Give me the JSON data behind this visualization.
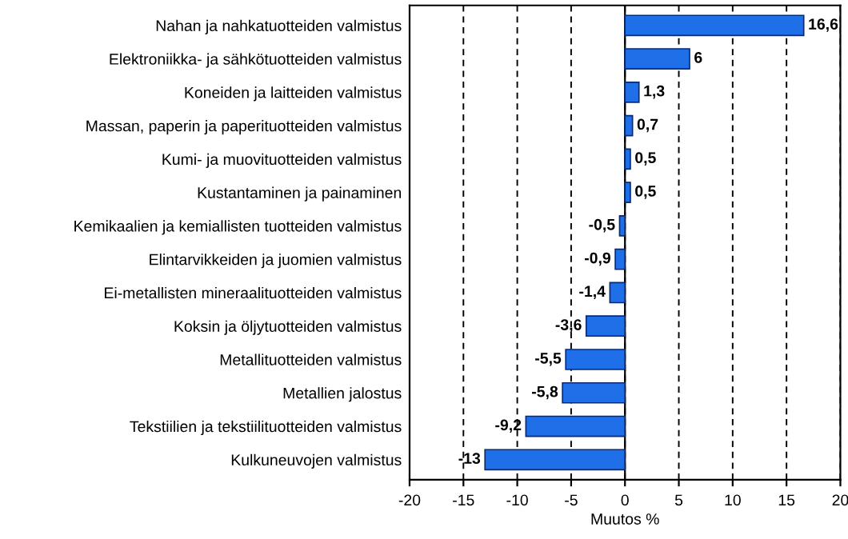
{
  "chart_data": {
    "type": "bar",
    "orientation": "horizontal",
    "xlabel": "Muutos %",
    "categories": [
      "Nahan ja nahkatuotteiden valmistus",
      "Elektroniikka- ja sähkötuotteiden valmistus",
      "Koneiden ja laitteiden valmistus",
      "Massan, paperin ja paperituotteiden valmistus",
      "Kumi- ja muovituotteiden valmistus",
      "Kustantaminen ja painaminen",
      "Kemikaalien ja kemiallisten tuotteiden valmistus",
      "Elintarvikkeiden ja juomien valmistus",
      "Ei-metallisten mineraalituotteiden valmistus",
      "Koksin ja öljytuotteiden valmistus",
      "Metallituotteiden valmistus",
      "Metallien jalostus",
      "Tekstiilien ja tekstiilituotteiden valmistus",
      "Kulkuneuvojen valmistus"
    ],
    "values": [
      16.6,
      6,
      1.3,
      0.7,
      0.5,
      0.5,
      -0.5,
      -0.9,
      -1.4,
      -3.6,
      -5.5,
      -5.8,
      -9.2,
      -13
    ],
    "value_labels": [
      "16,6",
      "6",
      "1,3",
      "0,7",
      "0,5",
      "0,5",
      "-0,5",
      "-0,9",
      "-1,4",
      "-3,6",
      "-5,5",
      "-5,8",
      "-9,2",
      "-13"
    ],
    "color": "#1f6fe8",
    "xlim": [
      -20,
      20
    ],
    "xticks": [
      -20,
      -15,
      -10,
      -5,
      0,
      5,
      10,
      15,
      20
    ],
    "grid": "x",
    "legend": false
  }
}
